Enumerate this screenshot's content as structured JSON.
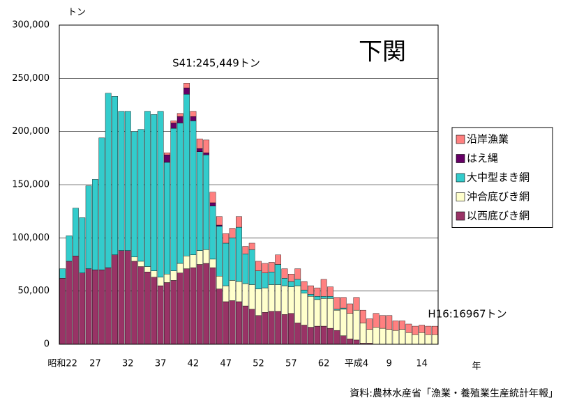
{
  "chart_data": {
    "type": "stacked_bar",
    "title": "下関",
    "y_label": "トン",
    "x_label": "年",
    "annotations": [
      "S41:245,449トン",
      "H16:16967トン"
    ],
    "source": "資料:農林水産省「漁業・養殖業生産統計年報」",
    "categories": [
      "昭和22",
      null,
      null,
      null,
      null,
      "27",
      null,
      null,
      null,
      null,
      "32",
      null,
      null,
      null,
      null,
      "37",
      null,
      null,
      null,
      null,
      "42",
      null,
      null,
      null,
      null,
      "47",
      null,
      null,
      null,
      null,
      "52",
      null,
      null,
      null,
      null,
      "57",
      null,
      null,
      null,
      null,
      "62",
      null,
      null,
      null,
      null,
      "平成4",
      null,
      null,
      null,
      null,
      "9",
      null,
      null,
      null,
      null,
      "14",
      null,
      null
    ],
    "series": [
      {
        "name": "以西底びき網",
        "color": "#993366",
        "values": [
          62000,
          78000,
          83000,
          67000,
          71000,
          70000,
          70000,
          72000,
          84000,
          88000,
          88000,
          78000,
          73000,
          68000,
          63000,
          55000,
          58000,
          60000,
          67000,
          71000,
          72000,
          75000,
          76000,
          72000,
          52000,
          40000,
          41000,
          40000,
          36000,
          33000,
          27000,
          30000,
          31000,
          31000,
          28000,
          29000,
          20000,
          18000,
          16000,
          17000,
          17000,
          15000,
          13000,
          8000,
          5000,
          4000,
          1000,
          1000,
          0,
          0,
          0,
          0,
          0,
          0,
          0,
          0,
          0,
          0
        ]
      },
      {
        "name": "沖合底びき網",
        "color": "#ffffcc",
        "values": [
          0,
          0,
          0,
          0,
          0,
          0,
          0,
          0,
          0,
          0,
          0,
          4000,
          5000,
          5000,
          6000,
          8000,
          8000,
          9000,
          9000,
          12000,
          12000,
          13000,
          13000,
          8000,
          12000,
          15000,
          19000,
          19000,
          21000,
          23000,
          25000,
          23000,
          25000,
          25000,
          27000,
          25000,
          35000,
          30000,
          29000,
          25000,
          26000,
          28000,
          19000,
          25000,
          24000,
          28000,
          19000,
          13000,
          16000,
          15000,
          14000,
          13000,
          14000,
          11000,
          9000,
          11000,
          9000,
          9000
        ]
      },
      {
        "name": "大中型まき網",
        "color": "#33cccc",
        "values": [
          9000,
          24000,
          45000,
          52000,
          78000,
          85000,
          124000,
          164000,
          149000,
          131000,
          131000,
          118000,
          124000,
          146000,
          147000,
          156000,
          105000,
          134000,
          132000,
          152000,
          126000,
          93000,
          89000,
          50000,
          47000,
          40000,
          40000,
          51000,
          28000,
          33000,
          17000,
          14000,
          12000,
          19000,
          7000,
          5000,
          6000,
          3000,
          2000,
          3000,
          2000,
          2000,
          1000,
          1000,
          0,
          0,
          0,
          0,
          0,
          0,
          0,
          0,
          0,
          0,
          0,
          0,
          0,
          0
        ]
      },
      {
        "name": "はえ縄",
        "color": "#660066",
        "values": [
          0,
          0,
          0,
          0,
          0,
          0,
          0,
          0,
          0,
          0,
          0,
          0,
          0,
          0,
          0,
          0,
          7000,
          5000,
          6000,
          6000,
          4000,
          3000,
          2000,
          3000,
          1000,
          0,
          0,
          0,
          0,
          0,
          0,
          0,
          0,
          0,
          0,
          0,
          0,
          0,
          0,
          0,
          0,
          0,
          0,
          0,
          0,
          0,
          0,
          0,
          0,
          0,
          0,
          0,
          0,
          0,
          0,
          0,
          0,
          0
        ]
      },
      {
        "name": "沿岸漁業",
        "color": "#ff8080",
        "values": [
          0,
          0,
          0,
          0,
          0,
          0,
          0,
          0,
          0,
          0,
          0,
          0,
          0,
          0,
          0,
          0,
          2000,
          2000,
          3000,
          4449,
          5000,
          9000,
          12000,
          10000,
          8000,
          9000,
          9000,
          10000,
          7000,
          6000,
          9000,
          9000,
          9000,
          9000,
          9000,
          7000,
          10000,
          8000,
          8000,
          8000,
          16000,
          9000,
          11000,
          10000,
          9000,
          12000,
          12000,
          10000,
          13000,
          12000,
          13000,
          9000,
          8000,
          8000,
          8000,
          7000,
          8000,
          7967
        ]
      }
    ],
    "ylim": [
      0,
      300000
    ],
    "yticks": [
      0,
      {
        "value": 50000,
        "label": "50,000"
      },
      {
        "value": 100000,
        "label": "100,000"
      },
      {
        "value": 150000,
        "label": "150,000"
      },
      {
        "value": 200000,
        "label": "200,000"
      },
      {
        "value": 250000,
        "label": "250,000"
      },
      {
        "value": 300000,
        "label": "300,000"
      }
    ],
    "grid": true,
    "legend": "right"
  }
}
